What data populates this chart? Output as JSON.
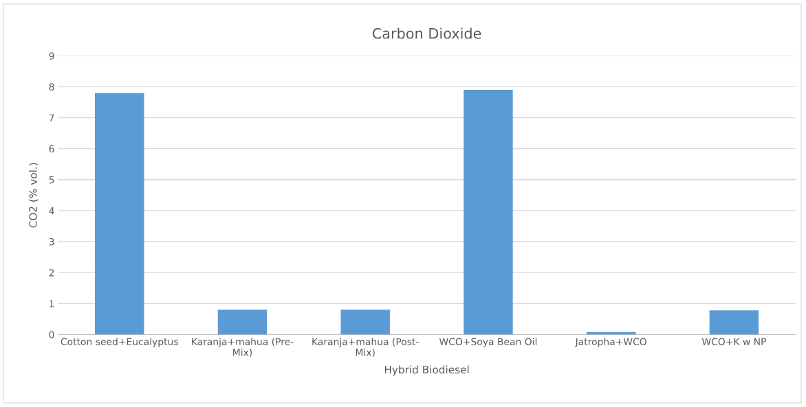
{
  "chart_data": {
    "type": "bar",
    "title": "Carbon Dioxide",
    "xlabel": "Hybrid Biodiesel",
    "ylabel": "CO2 (% vol.)",
    "categories": [
      "Cotton seed+Eucalyptus",
      "Karanja+mahua (Pre-Mix)",
      "Karanja+mahua (Post-Mix)",
      "WCO+Soya Bean Oil",
      "Jatropha+WCO",
      "WCO+K w NP"
    ],
    "values": [
      7.8,
      0.8,
      0.8,
      7.9,
      0.08,
      0.78
    ],
    "color": "#5b9bd5",
    "ylim": [
      0,
      9
    ],
    "yticks": [
      0,
      1,
      2,
      3,
      4,
      5,
      6,
      7,
      8,
      9
    ],
    "grid": "y",
    "legend": false
  }
}
